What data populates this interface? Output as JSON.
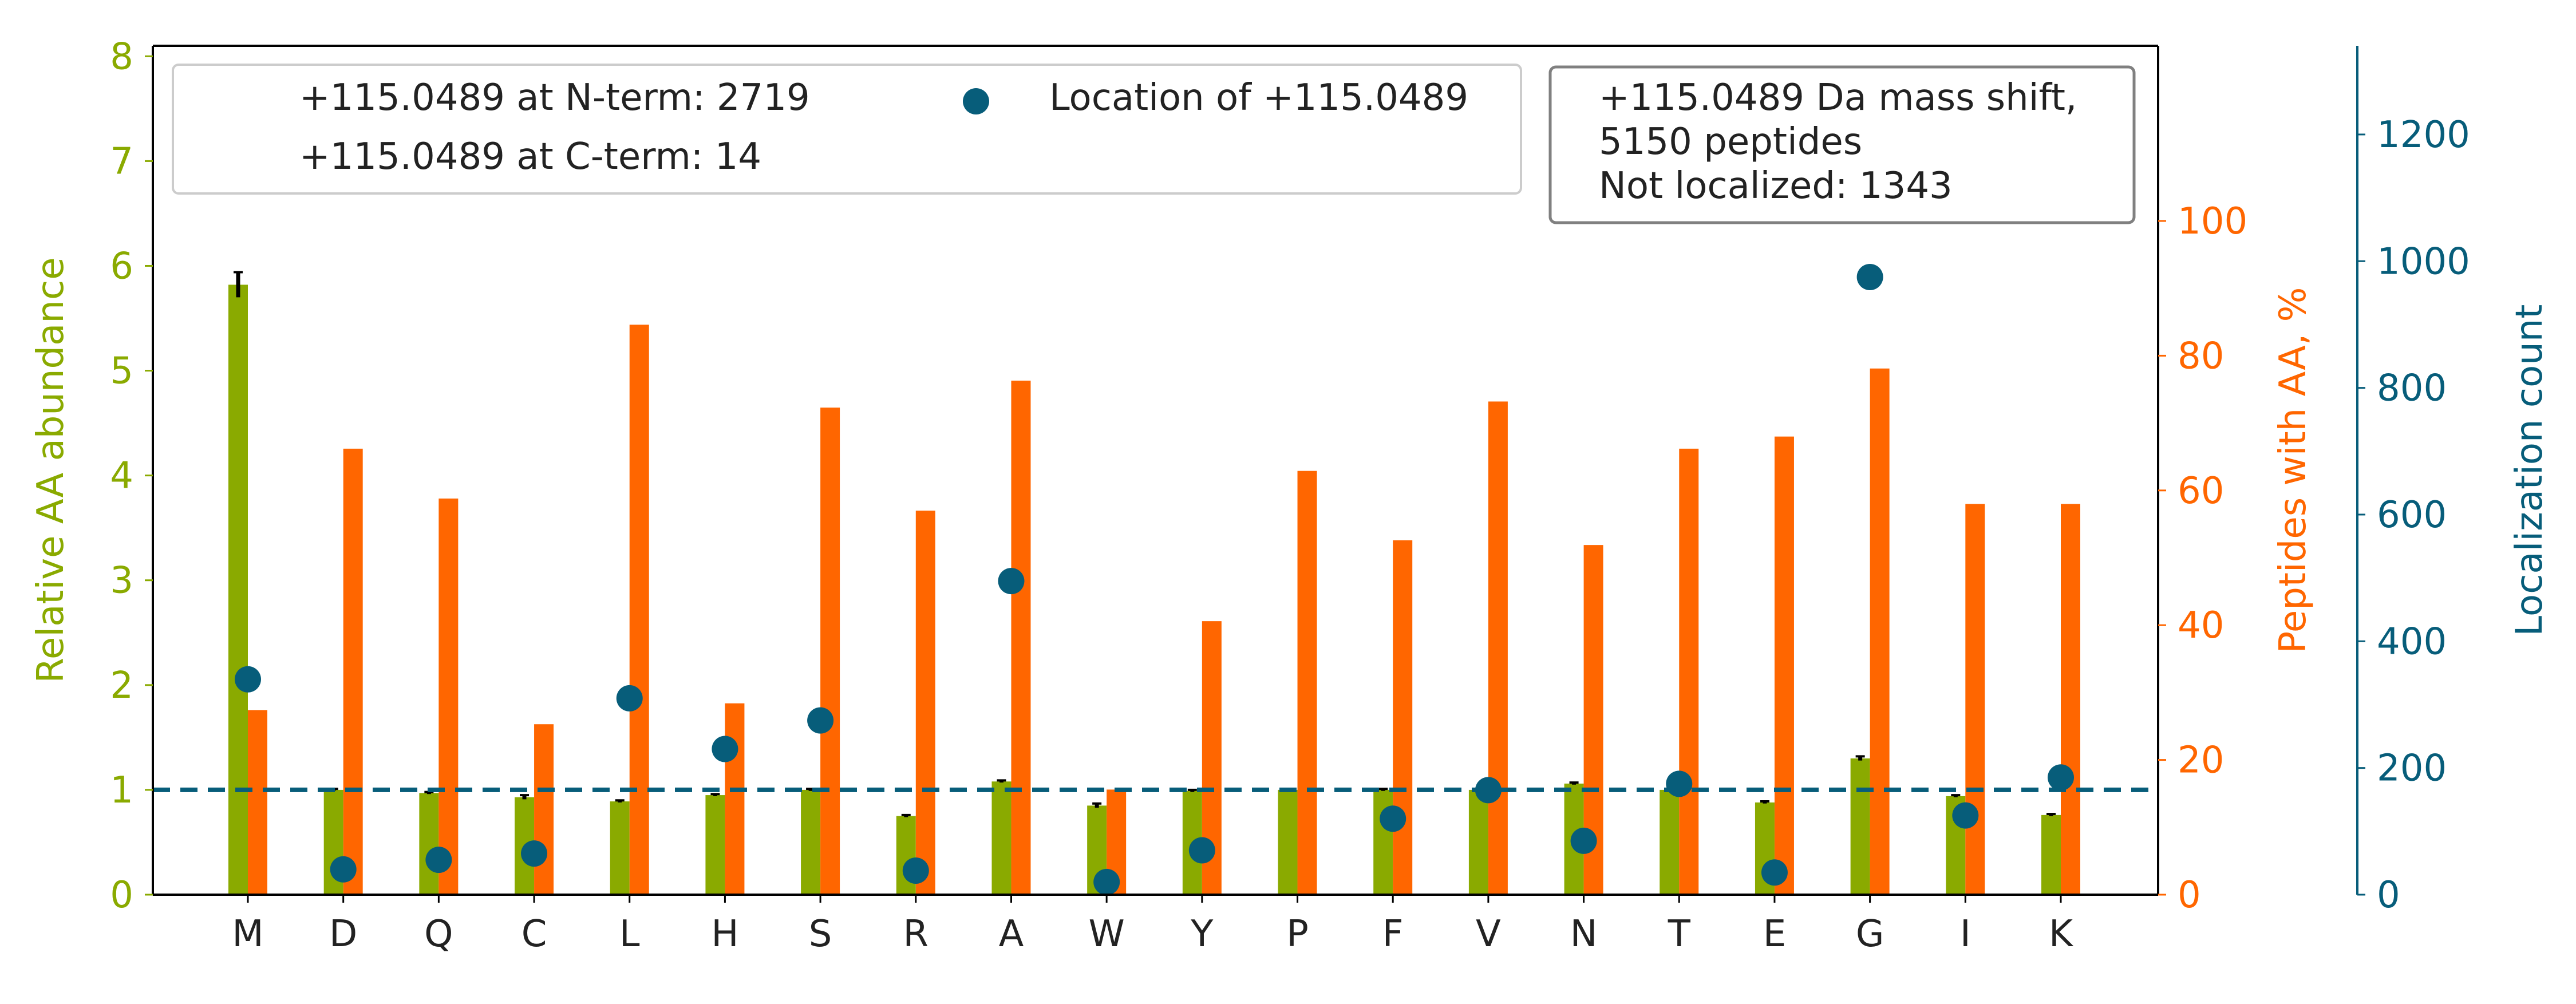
{
  "colors": {
    "abundance": "#8aaa00",
    "peptides": "#ff6600",
    "localization": "#075d7a",
    "errorbar": "#000000",
    "axis": "#000000",
    "text": "#222222",
    "legend_border": "#cccccc",
    "infobox_border": "#808080"
  },
  "chart_data": {
    "type": "bar",
    "categories": [
      "M",
      "D",
      "Q",
      "C",
      "L",
      "H",
      "S",
      "R",
      "A",
      "W",
      "Y",
      "P",
      "F",
      "V",
      "N",
      "T",
      "E",
      "G",
      "I",
      "K"
    ],
    "series": [
      {
        "name": "",
        "kind": "bar",
        "axis": "left",
        "values": [
          5.82,
          1.0,
          0.97,
          0.93,
          0.89,
          0.95,
          1.0,
          0.75,
          1.08,
          0.85,
          0.99,
          1.0,
          1.0,
          1.0,
          1.06,
          1.0,
          0.88,
          1.3,
          0.94,
          0.76
        ],
        "error": [
          0.12,
          0.01,
          0.01,
          0.02,
          0.01,
          0.01,
          0.01,
          0.01,
          0.01,
          0.02,
          0.01,
          0.01,
          0.01,
          0.01,
          0.01,
          0.01,
          0.01,
          0.02,
          0.01,
          0.01
        ]
      },
      {
        "name": "",
        "kind": "bar",
        "axis": "right",
        "values": [
          27.4,
          66.2,
          58.8,
          25.3,
          84.6,
          28.4,
          72.3,
          57.0,
          76.3,
          15.6,
          40.6,
          62.9,
          52.6,
          73.2,
          51.9,
          66.2,
          68.0,
          78.1,
          58.0,
          58.0
        ]
      },
      {
        "name": "Location of +115.0489",
        "kind": "scatter",
        "axis": "localization",
        "values": [
          340,
          40,
          55,
          65,
          310,
          230,
          275,
          38,
          495,
          20,
          70,
          0,
          120,
          165,
          85,
          175,
          35,
          975,
          125,
          185
        ]
      }
    ],
    "baseline": {
      "axis": "left",
      "value": 1.0,
      "style": "dashed"
    },
    "axes": {
      "left": {
        "label": "Relative AA abundance",
        "ylim": [
          0,
          8.1
        ],
        "ticks": [
          "0",
          "1",
          "2",
          "3",
          "4",
          "5",
          "6",
          "7",
          "8"
        ]
      },
      "right": {
        "label": "Peptides with AA, %",
        "ylim": [
          0,
          126
        ],
        "ticks": [
          "0",
          "20",
          "40",
          "60",
          "80",
          "100"
        ]
      },
      "localization": {
        "label": "Localization count",
        "ylim": [
          0,
          1340
        ],
        "ticks": [
          "0",
          "200",
          "400",
          "600",
          "800",
          "1000",
          "1200"
        ]
      }
    },
    "legend": {
      "placement": "top-left",
      "entries": [
        "+115.0489 at N-term: 2719",
        "+115.0489 at C-term: 14",
        "Location of +115.0489"
      ]
    },
    "infobox": {
      "placement": "top-right",
      "lines": [
        "+115.0489 Da mass shift,",
        "5150 peptides",
        "Not localized: 1343"
      ]
    },
    "grid": false
  }
}
